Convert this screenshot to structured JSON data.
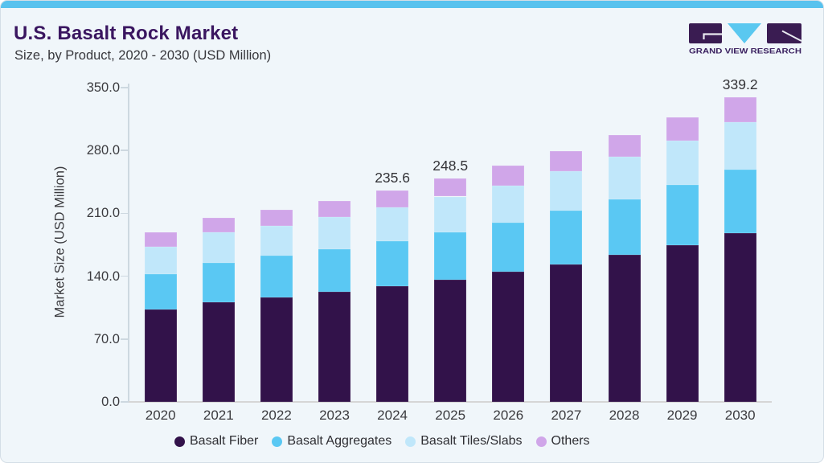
{
  "page": {
    "title": "U.S. Basalt Rock Market",
    "subtitle": "Size, by Product, 2020 - 2030 (USD Million)"
  },
  "logo": {
    "text": "GRAND VIEW RESEARCH",
    "mark_purple": "#3a1c52",
    "mark_blue": "#5ac8f0"
  },
  "colors": {
    "card_background": "#f0f6fa",
    "top_strip": "#58c2ee",
    "title_text": "#3a1660",
    "body_text": "#3b3b3f",
    "axis_line": "#cdd8e0",
    "baseline": "#d6d6d6"
  },
  "chart_data": {
    "type": "bar",
    "stacked": true,
    "title": "U.S. Basalt Rock Market",
    "subtitle": "Size, by Product, 2020 - 2030 (USD Million)",
    "xlabel": "",
    "ylabel": "Market Size (USD Million)",
    "ylim": [
      0,
      350
    ],
    "yticks": [
      0,
      70,
      140,
      210,
      280,
      350
    ],
    "ytick_labels": [
      "0.0",
      "70.0",
      "140.0",
      "210.0",
      "280.0",
      "350.0"
    ],
    "grid": false,
    "legend_position": "bottom",
    "categories": [
      "2020",
      "2021",
      "2022",
      "2023",
      "2024",
      "2025",
      "2026",
      "2027",
      "2028",
      "2029",
      "2030"
    ],
    "series": [
      {
        "name": "Basalt Fiber",
        "color": "#32124a",
        "values": [
          102.8,
          111.1,
          116.0,
          122.5,
          129.1,
          136.3,
          144.7,
          153.3,
          163.6,
          174.9,
          188.1
        ]
      },
      {
        "name": "Basalt Aggregates",
        "color": "#5ac8f3",
        "values": [
          39.5,
          43.7,
          46.7,
          47.9,
          50.3,
          52.7,
          54.8,
          59.3,
          61.9,
          66.4,
          70.2
        ]
      },
      {
        "name": "Basalt Tiles/Slabs",
        "color": "#c0e7fa",
        "values": [
          30.2,
          33.9,
          33.2,
          35.9,
          36.8,
          39.7,
          40.9,
          44.3,
          47.2,
          49.4,
          53.4
        ]
      },
      {
        "name": "Others",
        "color": "#d0a6e9",
        "values": [
          16.2,
          16.1,
          17.9,
          17.9,
          19.4,
          19.8,
          22.8,
          22.7,
          24.6,
          26.0,
          27.5
        ]
      }
    ],
    "totals": [
      188.7,
      204.8,
      213.8,
      224.2,
      235.6,
      248.5,
      263.2,
      279.6,
      297.3,
      316.7,
      339.2
    ],
    "shown_total_labels": {
      "2024": "235.6",
      "2025": "248.5",
      "2030": "339.2"
    }
  }
}
